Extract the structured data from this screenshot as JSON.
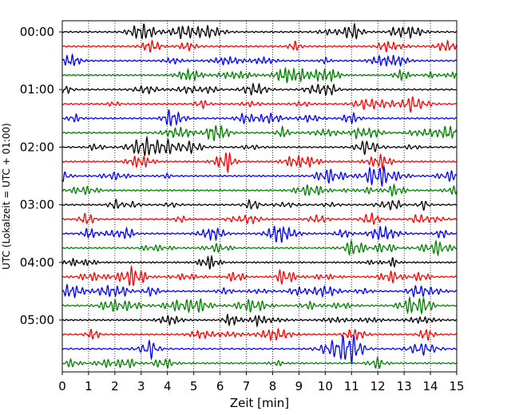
{
  "chart_data": {
    "type": "line",
    "title": "",
    "xlabel": "Zeit  [min]",
    "ylabel": "UTC (Lokalzeit = UTC + 01:00)",
    "xlim": [
      0,
      15
    ],
    "x_ticks": [
      "0",
      "1",
      "2",
      "3",
      "4",
      "5",
      "6",
      "7",
      "8",
      "9",
      "10",
      "11",
      "12",
      "13",
      "14",
      "15"
    ],
    "y_ticks": [
      "00:00",
      "01:00",
      "02:00",
      "03:00",
      "04:00",
      "05:00"
    ],
    "rows_per_hour": 4,
    "row_count": 24,
    "minutes_per_row": 15,
    "trace_colors": [
      "#000000",
      "#ff0000",
      "#0000ff",
      "#008000"
    ],
    "grid": "vertical-dotted",
    "legend": "none"
  }
}
